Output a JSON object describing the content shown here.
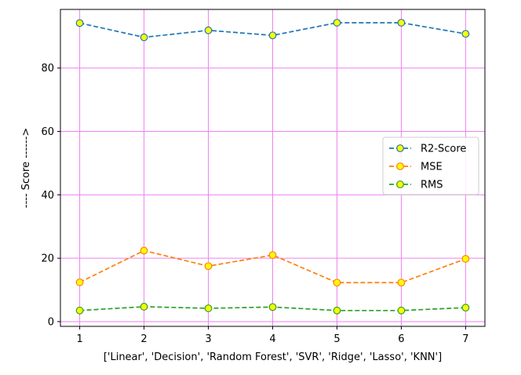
{
  "chart_data": {
    "type": "line",
    "title": "",
    "xlabel": "['Linear', 'Decision', 'Random Forest', 'SVR', 'Ridge', 'Lasso', 'KNN']",
    "ylabel": "---- Score ------>",
    "x": [
      1,
      2,
      3,
      4,
      5,
      6,
      7
    ],
    "xlim": [
      0.7,
      7.3
    ],
    "ylim": [
      -1.5,
      98.5
    ],
    "xticks": [
      1,
      2,
      3,
      4,
      5,
      6,
      7
    ],
    "yticks": [
      0,
      20,
      40,
      60,
      80
    ],
    "grid": true,
    "grid_color": "#ee82ee",
    "marker_face_color": "#ffff00",
    "legend_position": "center-right",
    "series": [
      {
        "name": "R2-Score",
        "color": "#1f77b4",
        "values": [
          94.2,
          89.7,
          91.9,
          90.3,
          94.3,
          94.3,
          90.8
        ]
      },
      {
        "name": "MSE",
        "color": "#ff7f0e",
        "values": [
          12.4,
          22.4,
          17.5,
          21.0,
          12.3,
          12.3,
          19.8
        ]
      },
      {
        "name": "RMS",
        "color": "#2ca02c",
        "values": [
          3.5,
          4.7,
          4.2,
          4.6,
          3.5,
          3.5,
          4.4
        ]
      }
    ]
  }
}
